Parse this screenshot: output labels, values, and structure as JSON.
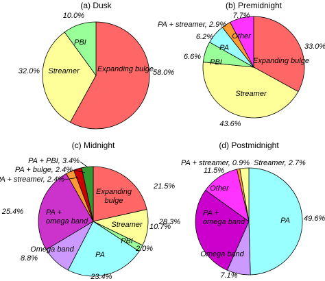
{
  "chart_data": [
    {
      "type": "pie",
      "title": "(a) Dusk",
      "slices": [
        {
          "name": "Expanding bulge",
          "value": 58.0,
          "label": "58.0%",
          "color": "#ff6666"
        },
        {
          "name": "Streamer",
          "value": 32.0,
          "label": "32.0%",
          "color": "#ffff99"
        },
        {
          "name": "PBI",
          "value": 10.0,
          "label": "10.0%",
          "color": "#99ff99"
        }
      ]
    },
    {
      "type": "pie",
      "title": "(b) Premidnight",
      "slices": [
        {
          "name": "Expanding bulge",
          "value": 33.0,
          "label": "33.0%",
          "color": "#ff6666"
        },
        {
          "name": "Streamer",
          "value": 43.6,
          "label": "43.6%",
          "color": "#ffff99"
        },
        {
          "name": "PBI",
          "value": 6.6,
          "label": "6.6%",
          "color": "#99ff99"
        },
        {
          "name": "PA",
          "value": 6.2,
          "label": "6.2%",
          "color": "#99ffff"
        },
        {
          "name": "PA + streamer",
          "value": 2.9,
          "label": "PA + streamer, 2.9%",
          "color": "#ff9933"
        },
        {
          "name": "Other",
          "value": 7.7,
          "label": "7.7%",
          "color": "#ff33ff"
        }
      ]
    },
    {
      "type": "pie",
      "title": "(c) Midnight",
      "slices": [
        {
          "name": "Expanding bulge",
          "value": 21.5,
          "label": "21.5%",
          "color": "#ff6666"
        },
        {
          "name": "Streamer",
          "value": 10.7,
          "label": "10.7%",
          "color": "#ffff99"
        },
        {
          "name": "PBI",
          "value": 2.0,
          "label": "2.0%",
          "color": "#99ff99"
        },
        {
          "name": "PA",
          "value": 23.4,
          "label": "23.4%",
          "color": "#99ffff"
        },
        {
          "name": "Omega band",
          "value": 8.8,
          "label": "8.8%",
          "color": "#cc99ff"
        },
        {
          "name": "PA + omega band",
          "value": 25.4,
          "label": "25.4%",
          "color": "#cc33cc"
        },
        {
          "name": "PA + streamer",
          "value": 2.4,
          "label": "PA + streamer, 2.4%",
          "color": "#ff9933"
        },
        {
          "name": "PA + bulge",
          "value": 2.4,
          "label": "PA + bulge, 2.4%",
          "color": "#cc0000"
        },
        {
          "name": "PA + PBI",
          "value": 3.4,
          "label": "PA + PBI, 3.4%",
          "color": "#339933"
        }
      ]
    },
    {
      "type": "pie",
      "title": "(d) Postmidnight",
      "slices": [
        {
          "name": "PA",
          "value": 49.6,
          "label": "49.6%",
          "color": "#99ffff"
        },
        {
          "name": "Omega band",
          "value": 7.1,
          "label": "7.1%",
          "color": "#cc99ff"
        },
        {
          "name": "PA + omega band",
          "value": 28.3,
          "label": "28.3%",
          "color": "#cc00cc"
        },
        {
          "name": "Other",
          "value": 11.5,
          "label": "11.5%",
          "color": "#ff33ff"
        },
        {
          "name": "PA + streamer",
          "value": 0.9,
          "label": "PA + streamer, 0.9%",
          "color": "#ff9933"
        },
        {
          "name": "Streamer",
          "value": 2.7,
          "label": "Streamer, 2.7%",
          "color": "#ffff99"
        }
      ]
    }
  ]
}
